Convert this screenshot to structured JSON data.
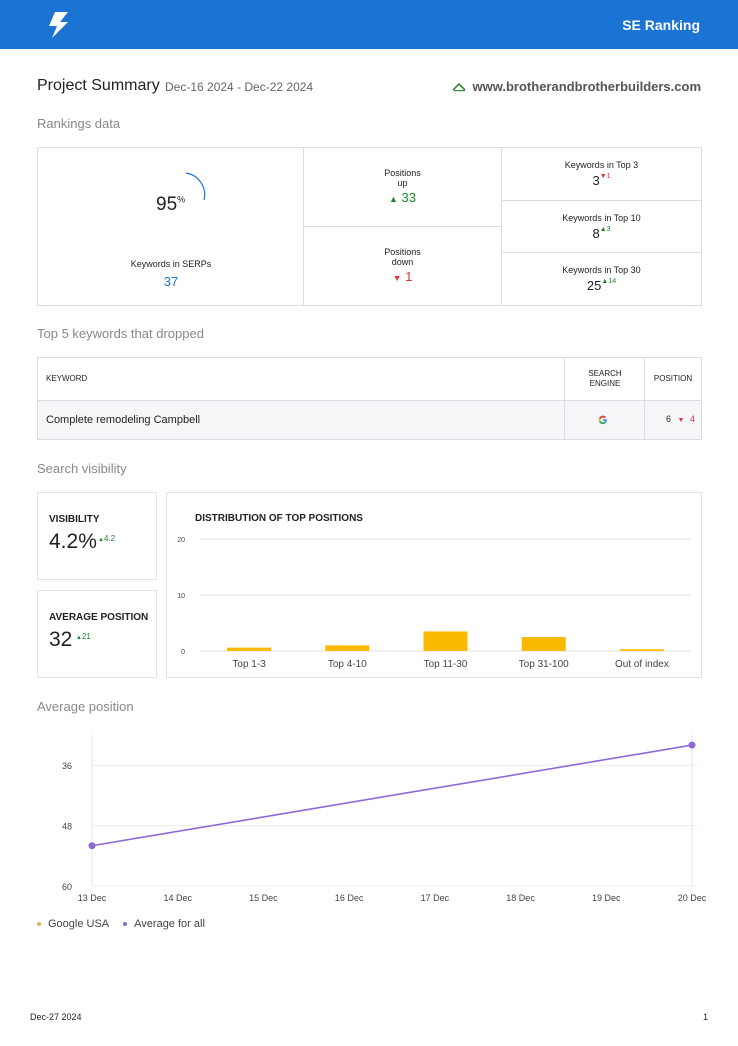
{
  "header": {
    "brand": "SE Ranking",
    "logo_icon": "se-ranking-bolt-icon",
    "color": "#1b74d4"
  },
  "summary": {
    "title": "Project Summary",
    "date_range": "Dec-16 2024 - Dec-22 2024",
    "site": "www.brotherandbrotherbuilders.com",
    "site_icon": "site-logo-icon"
  },
  "rankings": {
    "heading": "Rankings data",
    "serp_percent": "95",
    "serp_percent_sign": "%",
    "serp_label": "Keywords in SERPs",
    "serp_value": "37",
    "up_label_1": "Positions",
    "up_label_2": "up",
    "up_value": "33",
    "down_label_1": "Positions",
    "down_label_2": "down",
    "down_value": "1",
    "top3_label": "Keywords in Top 3",
    "top3_value": "3",
    "top3_change": "1",
    "top10_label": "Keywords in Top 10",
    "top10_value": "8",
    "top10_change": "3",
    "top30_label": "Keywords in Top 30",
    "top30_value": "25",
    "top30_change": "14"
  },
  "dropped": {
    "heading": "Top 5 keywords that dropped",
    "col_keyword": "KEYWORD",
    "col_engine_1": "SEARCH",
    "col_engine_2": "ENGINE",
    "col_position": "POSITION",
    "rows": [
      {
        "keyword": "Complete remodeling Campbell",
        "engine_icon": "google-icon",
        "position": "6",
        "change": "4"
      }
    ]
  },
  "visibility": {
    "heading": "Search visibility",
    "vis_label": "VISIBILITY",
    "vis_value": "4.2%",
    "vis_change": "4.2",
    "avg_label": "AVERAGE POSITION",
    "avg_value": "32",
    "avg_change": "21"
  },
  "chart_data": [
    {
      "type": "bar",
      "title": "DISTRIBUTION OF TOP POSITIONS",
      "categories": [
        "Top 1-3",
        "Top 4-10",
        "Top 11-30",
        "Top 31-100",
        "Out of index"
      ],
      "values": [
        0.6,
        1,
        3.5,
        2.5,
        0.3
      ],
      "yticks": [
        "20",
        "10",
        "0"
      ],
      "ylim": [
        0,
        20
      ],
      "color": "#fbb900",
      "grid": true
    },
    {
      "type": "line",
      "title": "Average position",
      "x": [
        "13 Dec",
        "14 Dec",
        "15 Dec",
        "16 Dec",
        "17 Dec",
        "18 Dec",
        "19 Dec",
        "20 Dec"
      ],
      "series": [
        {
          "name": "Average for all",
          "color": "#8d6ad6",
          "points": [
            {
              "x": "13 Dec",
              "y": 52
            },
            {
              "x": "20 Dec",
              "y": 32
            }
          ]
        }
      ],
      "yticks": [
        "36",
        "48",
        "60"
      ],
      "ylim": [
        30,
        60
      ],
      "inverted": true,
      "grid": true,
      "legend": [
        {
          "name": "Google USA",
          "color": "#e0b35a"
        },
        {
          "name": "Average for all",
          "color": "#8d6ad6"
        }
      ],
      "legend_position": "bottom-left"
    }
  ],
  "footer": {
    "date": "Dec-27 2024",
    "page": "1"
  }
}
